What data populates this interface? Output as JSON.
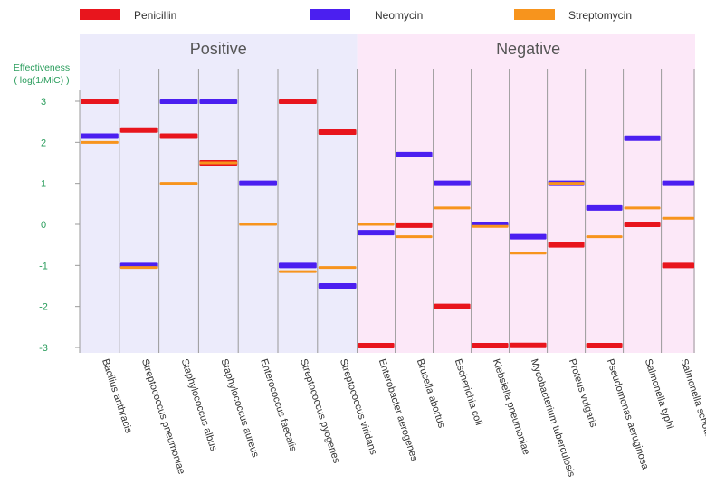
{
  "chart_data": {
    "type": "bar",
    "ylabel_line1": "Effectiveness",
    "ylabel_line2": "( log(1/MiC) )",
    "ylim": [
      -3,
      3
    ],
    "yticks": [
      3,
      2,
      1,
      0,
      -1,
      -2,
      -3
    ],
    "groups": [
      {
        "label": "Positive",
        "start": 0,
        "end": 7
      },
      {
        "label": "Negative",
        "start": 7,
        "end": 16
      }
    ],
    "series": [
      {
        "name": "Penicillin",
        "color": "#e8151d"
      },
      {
        "name": "Neomycin",
        "color": "#4b1ff0"
      },
      {
        "name": "Streptomycin",
        "color": "#f7941d"
      }
    ],
    "bacteria": [
      {
        "name": "Bacilius anthracis",
        "values": [
          3.0,
          2.15,
          2.0
        ]
      },
      {
        "name": "Streptococcus pneumoniae",
        "values": [
          2.3,
          -1.0,
          -1.05
        ]
      },
      {
        "name": "Staphylococcus albus",
        "values": [
          2.15,
          3.0,
          1.0
        ]
      },
      {
        "name": "Staphylococcus aureus",
        "values": [
          1.5,
          3.0,
          1.5
        ]
      },
      {
        "name": "Enterococcus faecalis",
        "values": [
          null,
          1.0,
          0.0
        ]
      },
      {
        "name": "Streptococcus pyogenes",
        "values": [
          3.0,
          -1.0,
          -1.15
        ]
      },
      {
        "name": "Streptococcus viridans",
        "values": [
          2.25,
          -1.5,
          -1.05
        ]
      },
      {
        "name": "Enterobacter aerogenes",
        "values": [
          -3.0,
          -0.2,
          0.0
        ]
      },
      {
        "name": "Brucella abortus",
        "values": [
          -0.02,
          1.7,
          -0.3
        ]
      },
      {
        "name": "Escherichia coli",
        "values": [
          -2.0,
          1.0,
          0.4
        ]
      },
      {
        "name": "Klebsiella pneumoniae",
        "values": [
          -3.0,
          0.0,
          -0.05
        ]
      },
      {
        "name": "Mycobacterium tuberculosis",
        "values": [
          -2.95,
          -0.3,
          -0.7
        ]
      },
      {
        "name": "Proteus vulgaris",
        "values": [
          -0.5,
          1.0,
          1.0
        ]
      },
      {
        "name": "Pseudomonas aeruginosa",
        "values": [
          -3.0,
          0.4,
          -0.3
        ]
      },
      {
        "name": "Salmonella typhi",
        "values": [
          0.0,
          2.1,
          0.4
        ]
      },
      {
        "name": "Salmonella schottmuelleri",
        "values": [
          -1.0,
          1.0,
          0.15
        ]
      }
    ]
  }
}
